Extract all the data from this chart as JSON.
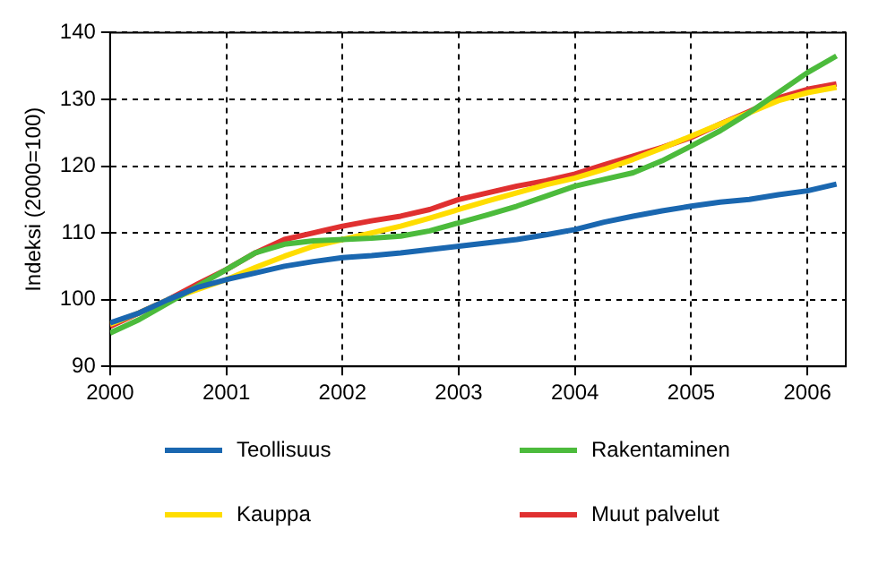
{
  "chart_data": {
    "type": "line",
    "ylabel": "Indeksi (2000=100)",
    "x": [
      2000,
      2000.25,
      2000.5,
      2000.75,
      2001,
      2001.25,
      2001.5,
      2001.75,
      2002,
      2002.25,
      2002.5,
      2002.75,
      2003,
      2003.25,
      2003.5,
      2003.75,
      2004,
      2004.25,
      2004.5,
      2004.75,
      2005,
      2005.25,
      2005.5,
      2005.75,
      2006,
      2006.25
    ],
    "series": [
      {
        "name": "Teollisuus",
        "color": "#1a67b0",
        "values": [
          96.5,
          98,
          100,
          101.8,
          103,
          104,
          105,
          105.7,
          106.3,
          106.6,
          107,
          107.5,
          108,
          108.5,
          109,
          109.7,
          110.5,
          111.6,
          112.5,
          113.3,
          114,
          114.6,
          115,
          115.7,
          116.3,
          117.3
        ]
      },
      {
        "name": "Rakentaminen",
        "color": "#4cbb3c",
        "values": [
          95,
          97,
          99.5,
          102,
          104.5,
          107,
          108.3,
          108.8,
          109,
          109.2,
          109.5,
          110.3,
          111.5,
          112.7,
          114,
          115.5,
          117,
          118,
          119,
          120.8,
          123,
          125.3,
          128,
          131,
          134,
          136.5
        ]
      },
      {
        "name": "Kauppa",
        "color": "#ffdd00",
        "values": [
          96.3,
          98,
          100,
          101.5,
          103,
          104.8,
          106.5,
          108,
          109,
          110,
          111,
          112.2,
          113.5,
          114.8,
          116,
          117.2,
          118.2,
          119.5,
          121,
          122.7,
          124.5,
          126.3,
          128,
          129.8,
          131,
          131.8
        ]
      },
      {
        "name": "Muut palvelut",
        "color": "#e03030",
        "values": [
          96,
          98,
          100,
          102.3,
          104.5,
          107,
          109,
          110,
          111,
          111.8,
          112.5,
          113.5,
          115,
          116,
          117,
          117.8,
          118.8,
          120.2,
          121.5,
          122.8,
          124.3,
          126.3,
          128.2,
          130.2,
          131.5,
          132.3
        ]
      }
    ],
    "xlim": [
      2000,
      2006.33
    ],
    "xticks": [
      2000,
      2001,
      2002,
      2003,
      2004,
      2005,
      2006
    ],
    "ylim": [
      90,
      140
    ],
    "yticks": [
      90,
      100,
      110,
      120,
      130,
      140
    ],
    "grid": true,
    "legend": "bottom",
    "marker": "none",
    "line_style": "solid"
  }
}
